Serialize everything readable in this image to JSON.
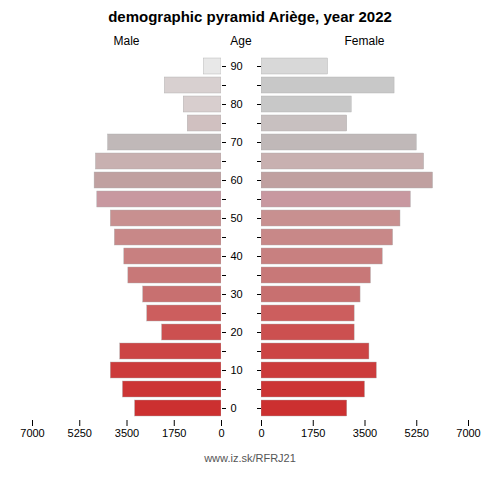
{
  "chart_data": {
    "type": "bar",
    "orientation": "horizontal",
    "title": "demographic pyramid Ariège, year 2022",
    "ylabel": "Age",
    "annotations": [
      "www.iz.sk/RFRJ21"
    ],
    "categories": [
      "0",
      null,
      "10",
      null,
      "20",
      null,
      "30",
      null,
      "40",
      null,
      "50",
      null,
      "60",
      null,
      "70",
      null,
      "80",
      null,
      "90"
    ],
    "series": [
      {
        "name": "Male",
        "colors": [
          "#cc3030",
          "#cc3535",
          "#cc3c3c",
          "#cc4545",
          "#cc5050",
          "#cc5e5e",
          "#c87070",
          "#c87878",
          "#c88080",
          "#c88888",
          "#c89090",
          "#c898a0",
          "#c0a0a0",
          "#c8b0b0",
          "#c0b8b8",
          "#d0c0c0",
          "#d8cece",
          "#d8d0d0",
          "#e8e8e8"
        ],
        "values": [
          3200,
          3650,
          4100,
          3750,
          2200,
          2750,
          2900,
          3450,
          3600,
          3950,
          4100,
          4600,
          4700,
          4650,
          4200,
          1250,
          1400,
          2100,
          650
        ]
      },
      {
        "name": "Female",
        "colors": [
          "#cc3030",
          "#cc3535",
          "#cc3c3c",
          "#cc4545",
          "#cc5050",
          "#cc5e5e",
          "#c87070",
          "#c87878",
          "#c88080",
          "#c88888",
          "#c89090",
          "#c898a0",
          "#c0a0a0",
          "#c8b0b0",
          "#c0b8b8",
          "#c8c0c0",
          "#c8c8c8",
          "#c8c8c8",
          "#d8d8d8"
        ],
        "values": [
          2900,
          3500,
          3900,
          3650,
          3150,
          3150,
          3350,
          3700,
          4100,
          4450,
          4700,
          5050,
          5800,
          5500,
          5250,
          2900,
          3050,
          4500,
          2250
        ]
      }
    ],
    "xlim": [
      0,
      7000
    ],
    "xticks": [
      0,
      1750,
      3500,
      5250,
      7000
    ],
    "grid": false
  }
}
